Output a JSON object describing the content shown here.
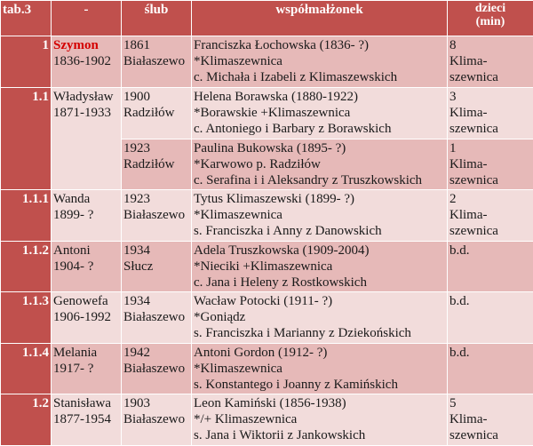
{
  "header": {
    "c0": "tab.3",
    "c1": "-",
    "c2": "ślub",
    "c3": "współmałżonek",
    "c4a": "dzieci",
    "c4b": "(min)"
  },
  "rows": [
    {
      "num": "1",
      "name": "Szymon",
      "life": "1836-1902",
      "year": "1861",
      "place": "Białaszewo",
      "sp1": "Franciszka Łochowska (1836- ?)",
      "sp2": "*Klimaszewnica",
      "sp3": "c. Michała i Izabeli z Klimaszewskich",
      "k1": "8",
      "k2": "Klima-",
      "k3": "szewnica"
    },
    {
      "num": "1.1",
      "name": "Władysław",
      "life": "1871-1933",
      "year": "1900",
      "place": "Radziłów",
      "sp1": "Helena Borawska (1880-1922)",
      "sp2": "*Borawskie +Klimaszewnica",
      "sp3": "c. Antoniego i Barbary z Borawskich",
      "k1": "3",
      "k2": "Klima-",
      "k3": "szewnica"
    },
    {
      "year": "1923",
      "place": "Radziłów",
      "sp1": "Paulina Bukowska (1895- ?)",
      "sp2": "*Karwowo p. Radziłów",
      "sp3": "c. Serafina i i Aleksandry z Truszkowskich",
      "k1": "1",
      "k2": "Klima-",
      "k3": "szewnica"
    },
    {
      "num": "1.1.1",
      "name": "Wanda",
      "life": "1899- ?",
      "year": "1923",
      "place": "Białaszewo",
      "sp1": "Tytus Klimaszewski (1899- ?)",
      "sp2": "*Klimaszewnica",
      "sp3": "s. Franciszka i Anny z Danowskich",
      "k1": "2",
      "k2": "Klima-",
      "k3": "szewnica"
    },
    {
      "num": "1.1.2",
      "name": "Antoni",
      "life": "1904- ?",
      "year": "1934",
      "place": "Słucz",
      "sp1": "Adela Truszkowska (1909-2004)",
      "sp2": "*Nieciki +Klimaszewnica",
      "sp3": "c. Jana i Heleny z Rostkowskich",
      "k1": "b.d."
    },
    {
      "num": "1.1.3",
      "name": "Genowefa",
      "life": "1906-1992",
      "year": "1934",
      "place": "Białaszewo",
      "sp1": "Wacław Potocki (1911- ?)",
      "sp2": "*Goniądz",
      "sp3": "s. Franciszka i Marianny z Dziekońskich",
      "k1": "b.d."
    },
    {
      "num": "1.1.4",
      "name": "Melania",
      "life": "1917- ?",
      "year": "1942",
      "place": "Białaszewo",
      "sp1": "Antoni Gordon (1912- ?)",
      "sp2": "*Klimaszewnica",
      "sp3": "s. Konstantego i Joanny z Kamińskich",
      "k1": "b.d."
    },
    {
      "num": "1.2",
      "name": "Stanisława",
      "life": "1877-1954",
      "year": "1903",
      "place": "Białaszewo",
      "sp1": "Leon Kamiński (1856-1938)",
      "sp2": "*/+ Klimaszewnica",
      "sp3": "s. Jana i Wiktorii z Jankowskich",
      "k1": "5",
      "k2": "Klima-",
      "k3": "szewnica"
    }
  ]
}
